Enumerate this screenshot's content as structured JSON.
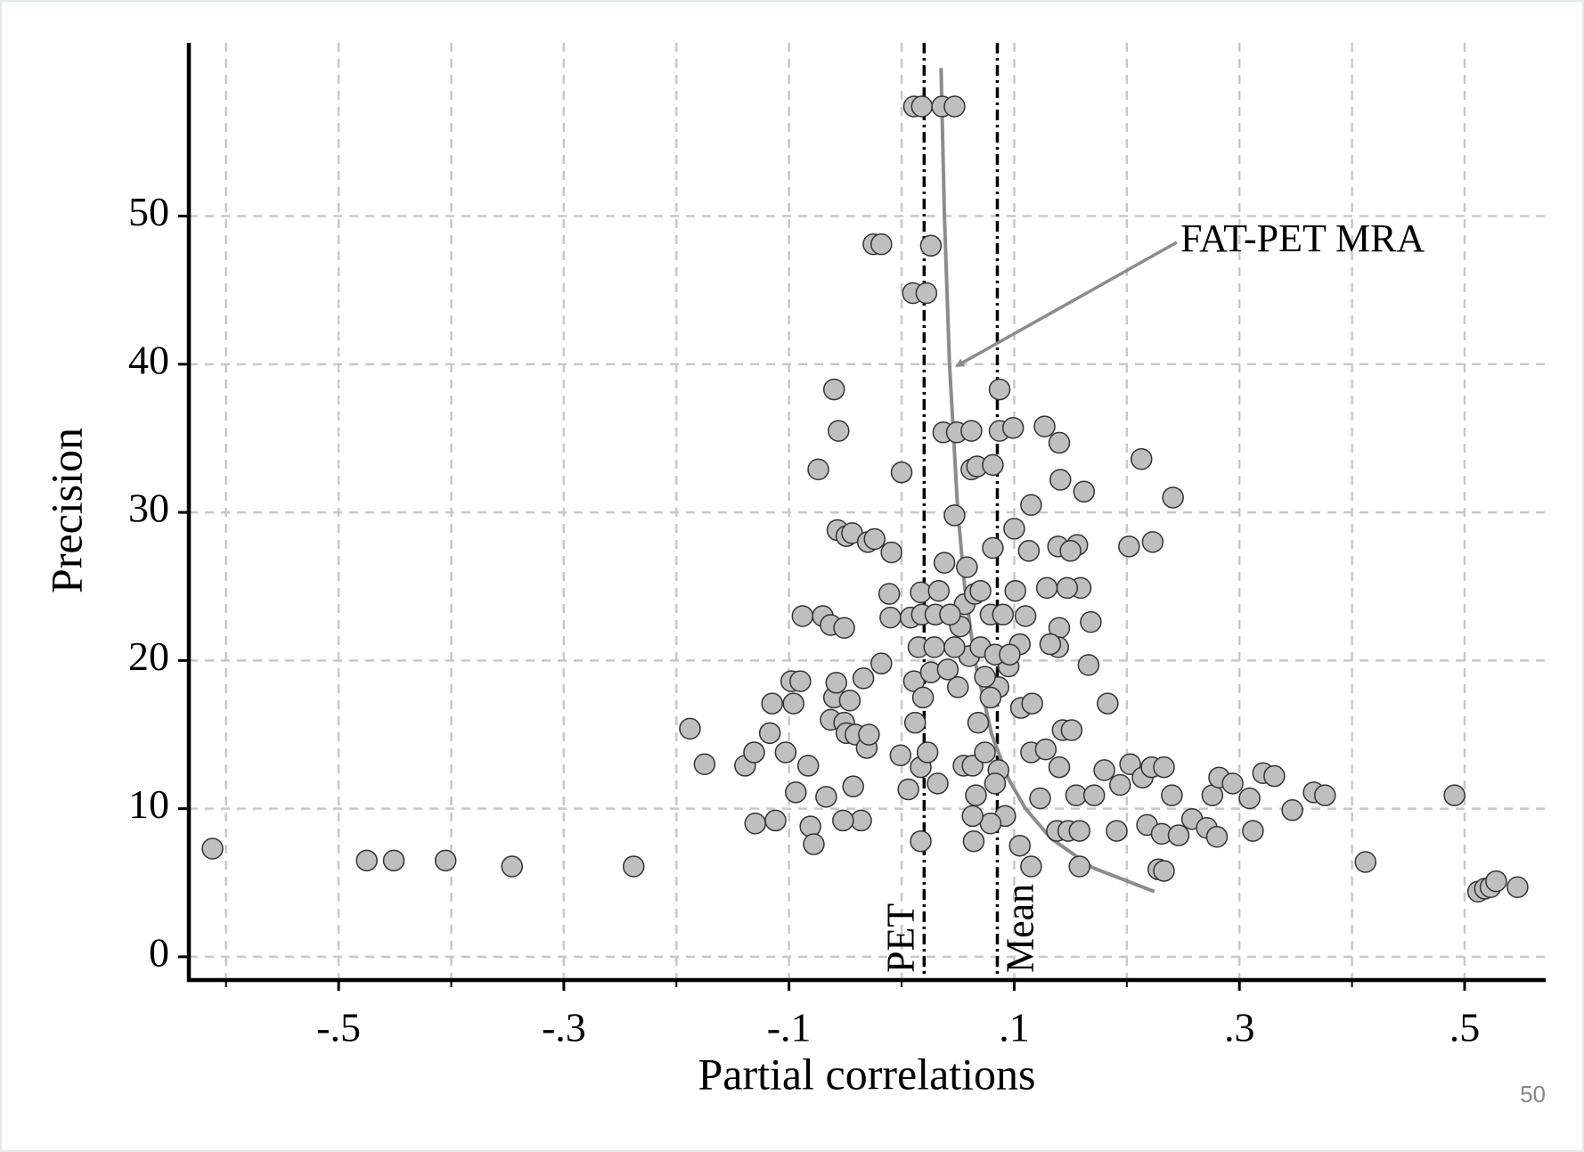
{
  "chart_data": {
    "type": "scatter",
    "x_label": "Partial correlations",
    "y_label": "Precision",
    "xlim": [
      -0.633,
      0.572
    ],
    "ylim": [
      -1.57,
      61.7
    ],
    "xticks": [
      {
        "value": -0.5,
        "label": "-.5"
      },
      {
        "value": -0.3,
        "label": "-.3"
      },
      {
        "value": -0.1,
        "label": "-.1"
      },
      {
        "value": 0.1,
        "label": ".1"
      },
      {
        "value": 0.3,
        "label": ".3"
      },
      {
        "value": 0.5,
        "label": ".5"
      }
    ],
    "xminor": [
      -0.6,
      -0.4,
      -0.2,
      0,
      0.2,
      0.4
    ],
    "yticks": [
      0,
      10,
      20,
      30,
      40,
      50
    ],
    "grid": true,
    "series": [
      {
        "color": "#bfbfbf",
        "x": [
          -0.612,
          -0.475,
          -0.451,
          -0.405,
          -0.346,
          -0.238,
          -0.188,
          -0.175,
          -0.139,
          -0.131,
          -0.117,
          -0.115,
          -0.13,
          -0.112,
          -0.103,
          -0.096,
          -0.098,
          -0.09,
          -0.088,
          -0.094,
          -0.083,
          -0.081,
          -0.078,
          -0.074,
          -0.07,
          -0.063,
          -0.06,
          -0.056,
          -0.057,
          -0.049,
          -0.044,
          -0.051,
          -0.063,
          -0.06,
          -0.058,
          -0.067,
          -0.051,
          -0.046,
          -0.049,
          -0.043,
          -0.036,
          -0.052,
          -0.041,
          -0.034,
          -0.031,
          -0.029,
          -0.03,
          -0.024,
          -0.025,
          -0.018,
          -0.018,
          -0.011,
          -0.01,
          -0.009,
          -0.001,
          0.0,
          0.006,
          0.008,
          0.011,
          0.018,
          0.01,
          0.022,
          0.026,
          0.012,
          0.011,
          0.015,
          0.017,
          0.018,
          0.017,
          0.017,
          0.023,
          0.019,
          0.026,
          0.029,
          0.032,
          0.033,
          0.036,
          0.047,
          0.037,
          0.038,
          0.047,
          0.049,
          0.058,
          0.062,
          0.062,
          0.067,
          0.081,
          0.081,
          0.087,
          0.087,
          0.099,
          0.1,
          0.115,
          0.113,
          0.127,
          0.14,
          0.141,
          0.139,
          0.156,
          0.162,
          0.15,
          0.213,
          0.241,
          0.202,
          0.223,
          0.183,
          0.166,
          0.168,
          0.159,
          0.147,
          0.129,
          0.101,
          0.14,
          0.139,
          0.132,
          0.11,
          0.105,
          0.095,
          0.086,
          0.106,
          0.116,
          0.115,
          0.128,
          0.143,
          0.151,
          0.14,
          0.123,
          0.138,
          0.148,
          0.158,
          0.155,
          0.171,
          0.18,
          0.194,
          0.203,
          0.214,
          0.222,
          0.233,
          0.24,
          0.191,
          0.218,
          0.231,
          0.246,
          0.258,
          0.271,
          0.28,
          0.276,
          0.282,
          0.294,
          0.309,
          0.312,
          0.321,
          0.331,
          0.347,
          0.366,
          0.376,
          0.491,
          0.412,
          0.228,
          0.233,
          0.115,
          0.158,
          0.105,
          0.092,
          0.079,
          0.064,
          0.063,
          0.066,
          0.055,
          0.063,
          0.074,
          0.068,
          0.086,
          0.083,
          0.079,
          0.074,
          0.06,
          0.05,
          0.047,
          0.052,
          0.056,
          0.065,
          0.07,
          0.079,
          0.09,
          0.07,
          0.083,
          0.096,
          0.041,
          0.03,
          0.043,
          0.512,
          0.518,
          0.523,
          0.528,
          0.547
        ],
        "values": [
          7.3,
          6.5,
          6.5,
          6.5,
          6.1,
          6.1,
          15.4,
          13.0,
          12.9,
          13.8,
          15.1,
          17.1,
          9.0,
          9.2,
          13.8,
          17.1,
          18.6,
          18.6,
          23.0,
          11.1,
          12.9,
          8.8,
          7.6,
          32.9,
          23.0,
          22.4,
          38.3,
          35.5,
          28.8,
          28.4,
          28.6,
          22.2,
          16.0,
          17.5,
          18.5,
          10.8,
          15.8,
          17.3,
          15.1,
          11.5,
          9.2,
          9.2,
          15.0,
          18.8,
          14.1,
          15.0,
          28.0,
          28.2,
          48.1,
          48.1,
          19.8,
          24.5,
          22.9,
          27.3,
          13.6,
          32.7,
          11.3,
          22.9,
          57.4,
          57.4,
          44.8,
          44.8,
          48.0,
          15.8,
          18.6,
          20.9,
          24.6,
          23.1,
          7.8,
          12.8,
          13.8,
          17.5,
          19.2,
          20.9,
          11.7,
          24.7,
          57.4,
          57.4,
          35.4,
          26.6,
          29.8,
          35.4,
          26.3,
          35.5,
          32.9,
          33.1,
          33.2,
          27.6,
          38.3,
          35.5,
          35.7,
          28.9,
          30.5,
          27.4,
          35.8,
          34.7,
          32.2,
          27.7,
          27.8,
          31.4,
          27.4,
          33.6,
          31.0,
          27.7,
          28.0,
          17.1,
          19.7,
          22.6,
          24.9,
          24.9,
          24.9,
          24.7,
          22.2,
          20.9,
          21.1,
          23.0,
          21.1,
          19.6,
          18.2,
          16.8,
          17.1,
          13.8,
          14.0,
          15.3,
          15.3,
          12.8,
          10.7,
          8.5,
          8.5,
          8.5,
          10.9,
          10.9,
          12.6,
          11.6,
          13.0,
          12.1,
          12.8,
          12.8,
          10.9,
          8.5,
          8.9,
          8.3,
          8.2,
          9.3,
          8.7,
          8.1,
          10.9,
          12.1,
          11.7,
          10.7,
          8.5,
          12.4,
          12.2,
          9.9,
          11.1,
          10.9,
          10.9,
          6.4,
          5.9,
          5.8,
          6.1,
          6.1,
          7.5,
          9.5,
          9.0,
          7.8,
          9.5,
          10.9,
          12.9,
          12.9,
          13.8,
          15.8,
          12.6,
          11.7,
          17.5,
          18.9,
          20.3,
          18.2,
          20.9,
          22.3,
          23.8,
          24.5,
          24.7,
          23.1,
          23.1,
          20.9,
          20.4,
          20.4,
          19.4,
          23.1,
          23.1,
          4.4,
          4.6,
          4.7,
          5.1,
          4.7
        ]
      }
    ],
    "reference_lines": [
      {
        "label": "PET",
        "x": 0.02
      },
      {
        "label": "Mean",
        "x": 0.085
      }
    ],
    "fit": {
      "label": "FAT-PET MRA",
      "color": "#8c8c8c",
      "x": [
        0.035,
        0.038,
        0.0425,
        0.05,
        0.056,
        0.065,
        0.08,
        0.095,
        0.11,
        0.1325,
        0.17,
        0.2245
      ],
      "values": [
        60,
        50,
        40,
        30,
        25,
        20,
        15,
        12,
        10,
        8,
        6,
        4.4
      ]
    },
    "page_number": "50"
  }
}
